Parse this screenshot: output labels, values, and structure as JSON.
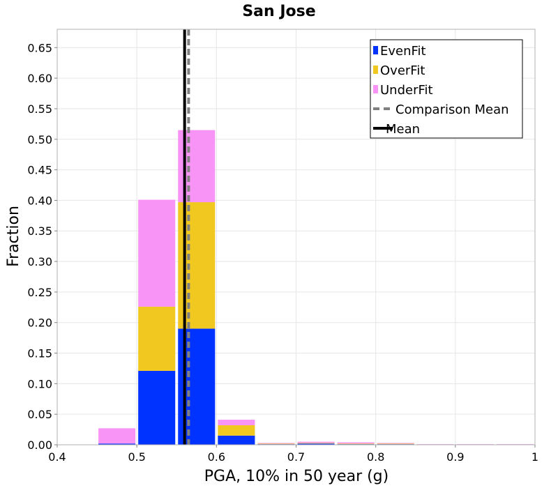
{
  "chart_data": {
    "type": "bar",
    "title": "San Jose",
    "xlabel": "PGA, 10% in 50 year (g)",
    "ylabel": "Fraction",
    "xlim": [
      0.4,
      1.0
    ],
    "ylim": [
      0,
      0.68
    ],
    "xticks": [
      "0.4",
      "0.5",
      "0.6",
      "0.7",
      "0.8",
      "0.9",
      "1"
    ],
    "yticks": [
      "0.00",
      "0.05",
      "0.10",
      "0.15",
      "0.20",
      "0.25",
      "0.30",
      "0.35",
      "0.40",
      "0.45",
      "0.50",
      "0.55",
      "0.60",
      "0.65"
    ],
    "stacked": true,
    "bin_width": 0.05,
    "bin_centers": [
      0.475,
      0.525,
      0.575,
      0.625,
      0.675,
      0.725,
      0.775,
      0.825,
      0.875,
      0.925,
      0.975
    ],
    "series": [
      {
        "name": "EvenFit",
        "color": "#0033ff",
        "values": [
          0.002,
          0.121,
          0.19,
          0.015,
          0.001,
          0.002,
          0.001,
          0.001,
          0.0,
          0.0,
          0.0
        ]
      },
      {
        "name": "OverFit",
        "color": "#f0c820",
        "values": [
          0.0,
          0.105,
          0.207,
          0.017,
          0.001,
          0.001,
          0.001,
          0.001,
          0.0,
          0.0,
          0.0
        ]
      },
      {
        "name": "UnderFit",
        "color": "#f794f5",
        "values": [
          0.025,
          0.175,
          0.118,
          0.009,
          0.001,
          0.002,
          0.002,
          0.001,
          0.001,
          0.001,
          0.001
        ]
      }
    ],
    "lines": [
      {
        "name": "Comparison Mean",
        "x": 0.565,
        "color": "#808080",
        "style": "dashed"
      },
      {
        "name": "Mean",
        "x": 0.56,
        "color": "#000000",
        "style": "solid"
      }
    ],
    "legend": {
      "placement": "top-right",
      "entries": [
        {
          "label": "EvenFit",
          "type": "box",
          "color": "#0033ff"
        },
        {
          "label": "OverFit",
          "type": "box",
          "color": "#f0c820"
        },
        {
          "label": "UnderFit",
          "type": "box",
          "color": "#f794f5"
        },
        {
          "label": "Comparison Mean",
          "type": "dashed-line",
          "color": "#808080"
        },
        {
          "label": "Mean",
          "type": "line",
          "color": "#000000"
        }
      ]
    },
    "grid": true
  }
}
